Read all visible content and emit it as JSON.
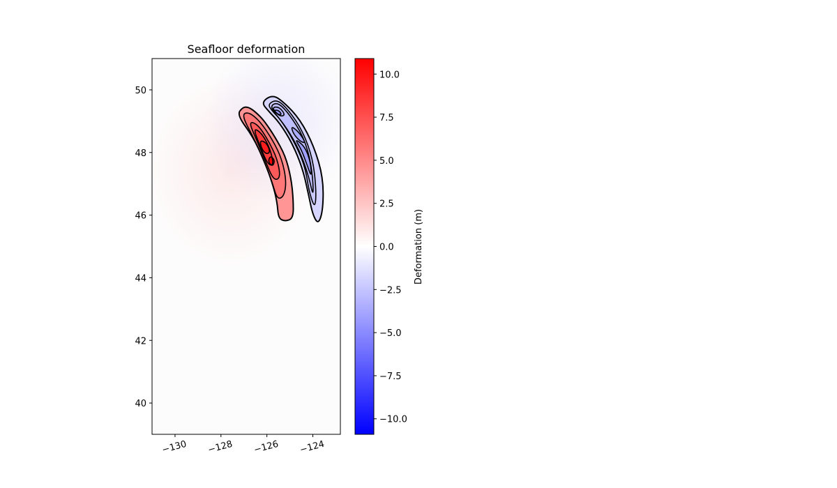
{
  "chart_data": {
    "type": "heatmap",
    "title": "Seafloor deformation",
    "xlabel": "",
    "ylabel": "",
    "xlim": [
      -131,
      -122.8
    ],
    "ylim": [
      39,
      51
    ],
    "x_ticks": [
      -130,
      -128,
      -126,
      -124
    ],
    "x_tick_labels": [
      "−130",
      "−128",
      "−126",
      "−124"
    ],
    "y_ticks": [
      40,
      42,
      44,
      46,
      48,
      50
    ],
    "y_tick_labels": [
      "40",
      "42",
      "44",
      "46",
      "48",
      "50"
    ],
    "colormap": "bwr",
    "colors": {
      "negative": "#0000ff",
      "zero": "#ffffff",
      "positive": "#ff0000",
      "contour": "#000000"
    },
    "colorbar": {
      "label": "Deformation (m)",
      "range": [
        -10.9,
        10.9
      ],
      "ticks": [
        10.0,
        7.5,
        5.0,
        2.5,
        0.0,
        -2.5,
        -5.0,
        -7.5,
        -10.0
      ],
      "tick_labels": [
        "10.0",
        "7.5",
        "5.0",
        "2.5",
        "0.0",
        "−2.5",
        "−5.0",
        "−7.5",
        "−10.0"
      ]
    },
    "uplift_zone": {
      "value_range": [
        0,
        10.9
      ],
      "outline": [
        [
          -127.3,
          49.2
        ],
        [
          -127.05,
          49.45
        ],
        [
          -126.8,
          49.45
        ],
        [
          -126.5,
          49.3
        ],
        [
          -126.1,
          49.0
        ],
        [
          -125.65,
          48.5
        ],
        [
          -125.2,
          47.9
        ],
        [
          -124.95,
          47.2
        ],
        [
          -124.85,
          46.5
        ],
        [
          -124.85,
          45.9
        ],
        [
          -125.2,
          45.8
        ],
        [
          -125.5,
          45.9
        ],
        [
          -125.55,
          46.4
        ],
        [
          -125.75,
          47.0
        ],
        [
          -126.1,
          47.7
        ],
        [
          -126.6,
          48.5
        ]
      ],
      "inner_contours": [
        [
          [
            -127.1,
            49.2
          ],
          [
            -126.8,
            49.3
          ],
          [
            -126.3,
            49.0
          ],
          [
            -125.75,
            48.4
          ],
          [
            -125.35,
            47.8
          ],
          [
            -125.15,
            47.1
          ],
          [
            -125.25,
            46.6
          ],
          [
            -125.55,
            46.5
          ],
          [
            -125.75,
            47.0
          ],
          [
            -126.1,
            47.7
          ],
          [
            -126.6,
            48.5
          ]
        ],
        [
          [
            -126.8,
            49.0
          ],
          [
            -126.4,
            48.9
          ],
          [
            -125.95,
            48.4
          ],
          [
            -125.55,
            47.8
          ],
          [
            -125.4,
            47.2
          ],
          [
            -125.7,
            47.1
          ],
          [
            -126.05,
            47.7
          ],
          [
            -126.45,
            48.4
          ]
        ],
        [
          [
            -126.6,
            48.8
          ],
          [
            -126.2,
            48.6
          ],
          [
            -125.85,
            48.1
          ],
          [
            -125.7,
            47.6
          ],
          [
            -125.95,
            47.6
          ],
          [
            -126.3,
            48.2
          ]
        ],
        [
          [
            -126.3,
            48.4
          ],
          [
            -126.0,
            48.3
          ],
          [
            -125.85,
            48.0
          ],
          [
            -126.05,
            47.95
          ],
          [
            -126.25,
            48.15
          ]
        ],
        [
          [
            -125.85,
            47.9
          ],
          [
            -125.65,
            47.75
          ],
          [
            -125.75,
            47.55
          ],
          [
            -125.95,
            47.7
          ]
        ]
      ]
    },
    "subsidence_zone": {
      "value_range": [
        -4.5,
        0
      ],
      "outline": [
        [
          -126.25,
          49.6
        ],
        [
          -125.75,
          49.85
        ],
        [
          -125.25,
          49.6
        ],
        [
          -124.55,
          49.05
        ],
        [
          -123.95,
          48.2
        ],
        [
          -123.55,
          47.2
        ],
        [
          -123.55,
          46.2
        ],
        [
          -123.75,
          45.7
        ],
        [
          -124.0,
          46.0
        ],
        [
          -124.2,
          46.7
        ],
        [
          -124.45,
          47.5
        ],
        [
          -124.9,
          48.3
        ],
        [
          -125.45,
          48.95
        ],
        [
          -125.9,
          49.3
        ]
      ],
      "inner_contours": [
        [
          [
            -125.95,
            49.55
          ],
          [
            -125.55,
            49.7
          ],
          [
            -125.05,
            49.35
          ],
          [
            -124.45,
            48.7
          ],
          [
            -124.0,
            47.8
          ],
          [
            -123.85,
            46.8
          ],
          [
            -123.9,
            46.2
          ],
          [
            -124.15,
            46.7
          ],
          [
            -124.35,
            47.6
          ],
          [
            -124.85,
            48.4
          ],
          [
            -125.4,
            49.05
          ],
          [
            -125.8,
            49.35
          ]
        ],
        [
          [
            -125.85,
            49.5
          ],
          [
            -125.5,
            49.6
          ],
          [
            -125.0,
            49.2
          ],
          [
            -124.4,
            48.5
          ],
          [
            -124.05,
            47.6
          ],
          [
            -123.95,
            46.5
          ],
          [
            -124.2,
            47.3
          ],
          [
            -124.6,
            48.1
          ],
          [
            -125.15,
            48.8
          ],
          [
            -125.65,
            49.25
          ]
        ],
        [
          [
            -125.75,
            49.45
          ],
          [
            -125.45,
            49.45
          ],
          [
            -125.2,
            49.2
          ],
          [
            -125.4,
            49.15
          ],
          [
            -125.65,
            49.3
          ]
        ],
        [
          [
            -124.95,
            48.85
          ],
          [
            -124.6,
            48.65
          ],
          [
            -124.3,
            48.3
          ],
          [
            -124.55,
            48.35
          ],
          [
            -124.85,
            48.6
          ]
        ],
        [
          [
            -124.8,
            48.45
          ],
          [
            -124.35,
            48.2
          ],
          [
            -124.1,
            47.7
          ],
          [
            -124.05,
            47.2
          ],
          [
            -124.25,
            47.6
          ],
          [
            -124.5,
            48.1
          ]
        ],
        [
          [
            -125.7,
            49.35
          ],
          [
            -125.5,
            49.35
          ],
          [
            -125.35,
            49.22
          ],
          [
            -125.5,
            49.2
          ]
        ]
      ]
    }
  }
}
